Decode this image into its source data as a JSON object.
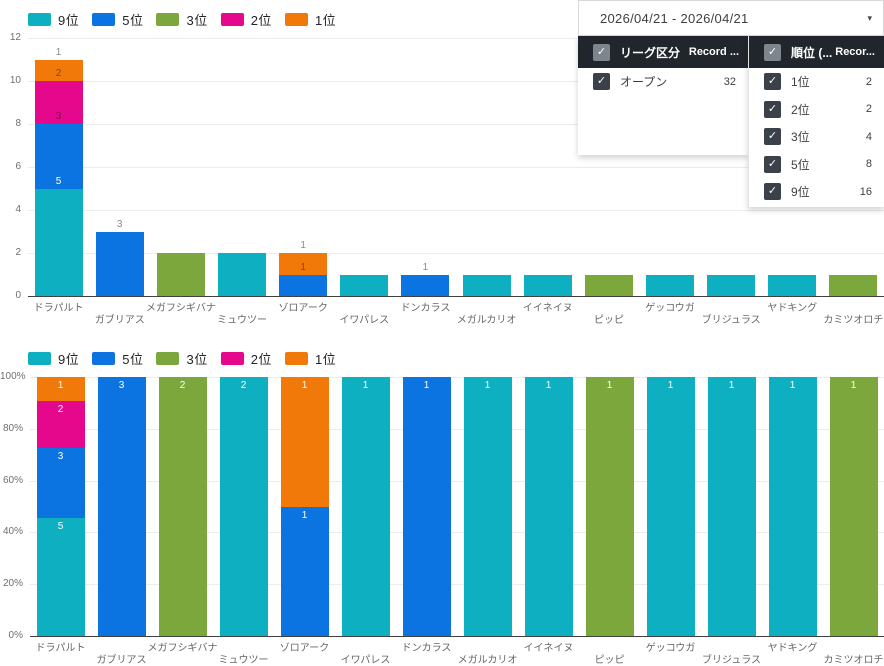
{
  "icons": {
    "check": "✓",
    "caret": "▾"
  },
  "date_slicer": {
    "value": "2026/04/21 - 2026/04/21"
  },
  "filters": [
    {
      "title": "リーグ区分",
      "record_label": "Record ...",
      "rows": [
        {
          "label": "オープン",
          "count": "32"
        }
      ]
    },
    {
      "title": "順位 (...",
      "record_label": "Recor...",
      "rows": [
        {
          "label": "1位",
          "count": "2"
        },
        {
          "label": "2位",
          "count": "2"
        },
        {
          "label": "3位",
          "count": "4"
        },
        {
          "label": "5位",
          "count": "8"
        },
        {
          "label": "9位",
          "count": "16"
        }
      ]
    }
  ],
  "chart_data": [
    {
      "type": "bar",
      "stacked": true,
      "title": "",
      "xlabel": "",
      "ylabel": "",
      "ylim": [
        0,
        12
      ],
      "yticks": [
        0,
        2,
        4,
        6,
        8,
        10,
        12
      ],
      "grid": true,
      "legend_position": "top-left",
      "categories": [
        "ドラパルト",
        "ガブリアス",
        "メガフシギバナ",
        "ミュウツー",
        "ゾロアーク",
        "イワパレス",
        "ドンカラス",
        "メガルカリオ",
        "イイネイヌ",
        "ピッピ",
        "ゲッコウガ",
        "ブリジュラス",
        "ヤドキング",
        "カミツオロチ"
      ],
      "series": [
        {
          "name": "9位",
          "color": "#0DAFC0",
          "values": [
            5,
            0,
            0,
            2,
            0,
            1,
            0,
            1,
            1,
            0,
            1,
            1,
            1,
            0
          ]
        },
        {
          "name": "5位",
          "color": "#0B74E0",
          "values": [
            3,
            3,
            0,
            0,
            1,
            0,
            1,
            0,
            0,
            0,
            0,
            0,
            0,
            0
          ]
        },
        {
          "name": "3位",
          "color": "#7CA73C",
          "values": [
            0,
            0,
            2,
            0,
            0,
            0,
            0,
            0,
            0,
            1,
            0,
            0,
            0,
            1
          ]
        },
        {
          "name": "2位",
          "color": "#E5078C",
          "values": [
            2,
            0,
            0,
            0,
            0,
            0,
            0,
            0,
            0,
            0,
            0,
            0,
            0,
            0
          ]
        },
        {
          "name": "1位",
          "color": "#F1790A",
          "values": [
            1,
            0,
            0,
            0,
            1,
            0,
            0,
            0,
            0,
            0,
            0,
            0,
            0,
            0
          ]
        }
      ],
      "visible_labels": [
        {
          "cat": 0,
          "cum": 5,
          "text": "5",
          "style": "light"
        },
        {
          "cat": 0,
          "cum": 8,
          "text": "3",
          "style": "dark"
        },
        {
          "cat": 0,
          "cum": 10,
          "text": "2",
          "style": "dark"
        },
        {
          "cat": 0,
          "cum": 11,
          "text": "1",
          "style": "above"
        },
        {
          "cat": 1,
          "cum": 3,
          "text": "3",
          "style": "above"
        },
        {
          "cat": 4,
          "cum": 1,
          "text": "1",
          "style": "dark"
        },
        {
          "cat": 4,
          "cum": 2,
          "text": "1",
          "style": "above"
        },
        {
          "cat": 6,
          "cum": 1,
          "text": "1",
          "style": "above"
        }
      ]
    },
    {
      "type": "bar",
      "stacked": true,
      "percent": true,
      "title": "",
      "xlabel": "",
      "ylabel": "",
      "ylim": [
        0,
        100
      ],
      "yticks": [
        "0%",
        "20%",
        "40%",
        "60%",
        "80%",
        "100%"
      ],
      "grid": true,
      "legend_position": "top-left",
      "auto_labels": true,
      "categories": [
        "ドラパルト",
        "ガブリアス",
        "メガフシギバナ",
        "ミュウツー",
        "ゾロアーク",
        "イワパレス",
        "ドンカラス",
        "メガルカリオ",
        "イイネイヌ",
        "ピッピ",
        "ゲッコウガ",
        "ブリジュラス",
        "ヤドキング",
        "カミツオロチ"
      ],
      "series": [
        {
          "name": "9位",
          "color": "#0DAFC0",
          "values": [
            5,
            0,
            0,
            2,
            0,
            1,
            0,
            1,
            1,
            0,
            1,
            1,
            1,
            0
          ]
        },
        {
          "name": "5位",
          "color": "#0B74E0",
          "values": [
            3,
            3,
            0,
            0,
            1,
            0,
            1,
            0,
            0,
            0,
            0,
            0,
            0,
            0
          ]
        },
        {
          "name": "3位",
          "color": "#7CA73C",
          "values": [
            0,
            0,
            2,
            0,
            0,
            0,
            0,
            0,
            0,
            1,
            0,
            0,
            0,
            1
          ]
        },
        {
          "name": "2位",
          "color": "#E5078C",
          "values": [
            2,
            0,
            0,
            0,
            0,
            0,
            0,
            0,
            0,
            0,
            0,
            0,
            0,
            0
          ]
        },
        {
          "name": "1位",
          "color": "#F1790A",
          "values": [
            1,
            0,
            0,
            0,
            1,
            0,
            0,
            0,
            0,
            0,
            0,
            0,
            0,
            0
          ]
        }
      ]
    }
  ]
}
